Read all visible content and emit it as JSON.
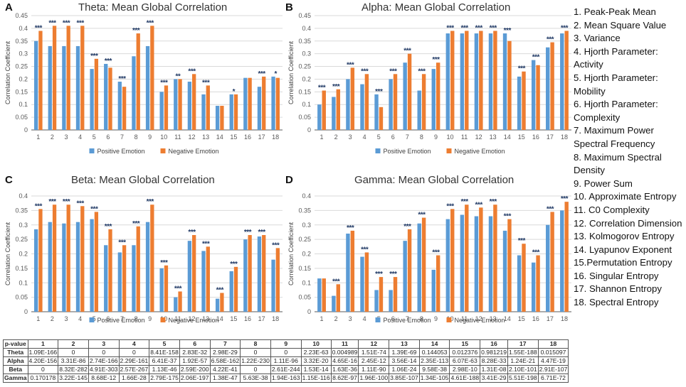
{
  "colors": {
    "positive": "#5B9BD5",
    "negative": "#ED7D31",
    "star": "#1F3864",
    "grid": "#D9D9D9",
    "axis": "#595959"
  },
  "chart_data": [
    {
      "letter": "A",
      "type": "bar",
      "title": "Theta: Mean Global Correlation",
      "ylabel": "Correlation Coefficient",
      "ylim": [
        0,
        0.45
      ],
      "yticks": [
        "0",
        "0.05",
        "0.1",
        "0.15",
        "0.2",
        "0.25",
        "0.3",
        "0.35",
        "0.4",
        "0.45"
      ],
      "categories": [
        "1",
        "2",
        "3",
        "4",
        "5",
        "6",
        "7",
        "8",
        "9",
        "10",
        "11",
        "12",
        "13",
        "14",
        "15",
        "16",
        "17",
        "18"
      ],
      "series": [
        {
          "name": "Positive Emotion",
          "values": [
            0.35,
            0.33,
            0.33,
            0.33,
            0.24,
            0.26,
            0.19,
            0.29,
            0.33,
            0.15,
            0.2,
            0.19,
            0.14,
            0.095,
            0.14,
            0.205,
            0.17,
            0.21
          ]
        },
        {
          "name": "Negative Emotion",
          "values": [
            0.39,
            0.41,
            0.41,
            0.41,
            0.28,
            0.245,
            0.17,
            0.38,
            0.41,
            0.175,
            0.2,
            0.22,
            0.175,
            0.095,
            0.14,
            0.205,
            0.21,
            0.205
          ]
        }
      ],
      "significance": [
        "***",
        "***",
        "***",
        "***",
        "***",
        "***",
        "***",
        "***",
        "***",
        "***",
        "**",
        "***",
        "***",
        "",
        "*",
        "",
        "***",
        "*"
      ]
    },
    {
      "letter": "B",
      "type": "bar",
      "title": "Alpha: Mean Global Correlation",
      "ylabel": "Correlation Coefficient",
      "ylim": [
        0,
        0.45
      ],
      "yticks": [
        "0",
        "0.05",
        "0.1",
        "0.15",
        "0.2",
        "0.25",
        "0.3",
        "0.35",
        "0.4",
        "0.45"
      ],
      "categories": [
        "1",
        "2",
        "3",
        "4",
        "5",
        "6",
        "7",
        "8",
        "9",
        "10",
        "11",
        "12",
        "13",
        "14",
        "15",
        "16",
        "17",
        "18"
      ],
      "series": [
        {
          "name": "Positive Emotion",
          "values": [
            0.1,
            0.13,
            0.2,
            0.18,
            0.14,
            0.2,
            0.265,
            0.155,
            0.24,
            0.38,
            0.38,
            0.38,
            0.38,
            0.38,
            0.21,
            0.275,
            0.325,
            0.38
          ]
        },
        {
          "name": "Negative Emotion",
          "values": [
            0.155,
            0.16,
            0.245,
            0.22,
            0.09,
            0.22,
            0.3,
            0.22,
            0.265,
            0.39,
            0.39,
            0.39,
            0.39,
            0.35,
            0.23,
            0.255,
            0.345,
            0.39
          ]
        }
      ],
      "significance": [
        "***",
        "***",
        "***",
        "***",
        "***",
        "***",
        "***",
        "***",
        "***",
        "***",
        "***",
        "***",
        "***",
        "***",
        "***",
        "***",
        "***",
        "***"
      ]
    },
    {
      "letter": "C",
      "type": "bar",
      "title": "Beta: Mean Global Correlation",
      "ylabel": "Correlation Coefficient",
      "ylim": [
        0,
        0.4
      ],
      "yticks": [
        "0",
        "0.05",
        "0.1",
        "0.15",
        "0.2",
        "0.25",
        "0.3",
        "0.35",
        "0.4"
      ],
      "categories": [
        "1",
        "2",
        "3",
        "4",
        "5",
        "6",
        "7",
        "8",
        "9",
        "10",
        "11",
        "12",
        "13",
        "14",
        "15",
        "16",
        "17",
        "18"
      ],
      "series": [
        {
          "name": "Positive Emotion",
          "values": [
            0.285,
            0.31,
            0.305,
            0.31,
            0.32,
            0.23,
            0.205,
            0.23,
            0.31,
            0.15,
            0.05,
            0.245,
            0.21,
            0.045,
            0.14,
            0.25,
            0.26,
            0.18
          ]
        },
        {
          "name": "Negative Emotion",
          "values": [
            0.355,
            0.37,
            0.37,
            0.365,
            0.345,
            0.285,
            0.23,
            0.295,
            0.37,
            0.16,
            0.07,
            0.265,
            0.225,
            0.065,
            0.155,
            0.265,
            0.265,
            0.22
          ]
        }
      ],
      "significance": [
        "***",
        "***",
        "***",
        "***",
        "***",
        "***",
        "***",
        "***",
        "***",
        "***",
        "***",
        "***",
        "***",
        "***",
        "***",
        "***",
        "***",
        "***"
      ]
    },
    {
      "letter": "D",
      "type": "bar",
      "title": "Gamma: Mean Global Correlation",
      "ylabel": "Correlation Coefficient",
      "ylim": [
        0,
        0.4
      ],
      "yticks": [
        "0",
        "0.05",
        "0.1",
        "0.15",
        "0.2",
        "0.25",
        "0.3",
        "0.35",
        "0.4"
      ],
      "categories": [
        "1",
        "2",
        "3",
        "4",
        "5",
        "6",
        "7",
        "8",
        "9",
        "10",
        "11",
        "12",
        "13",
        "14",
        "15",
        "16",
        "17",
        "18"
      ],
      "series": [
        {
          "name": "Positive Emotion",
          "values": [
            0.115,
            0.055,
            0.27,
            0.19,
            0.075,
            0.075,
            0.245,
            0.305,
            0.145,
            0.32,
            0.335,
            0.33,
            0.33,
            0.28,
            0.195,
            0.17,
            0.3,
            0.35
          ]
        },
        {
          "name": "Negative Emotion",
          "values": [
            0.115,
            0.095,
            0.28,
            0.205,
            0.12,
            0.12,
            0.285,
            0.325,
            0.195,
            0.355,
            0.37,
            0.36,
            0.37,
            0.32,
            0.235,
            0.195,
            0.345,
            0.38
          ]
        }
      ],
      "significance": [
        "",
        "***",
        "***",
        "***",
        "***",
        "***",
        "***",
        "***",
        "***",
        "***",
        "***",
        "***",
        "***",
        "***",
        "***",
        "***",
        "***",
        "***"
      ]
    }
  ],
  "legend": {
    "items": [
      "1. Peak-Peak Mean",
      "2. Mean Square Value",
      "3. Variance",
      "4. Hjorth Parameter: Activity",
      "5. Hjorth Parameter: Mobility",
      "6. Hjorth Parameter: Complexity",
      "7. Maximum Power Spectral Frequency",
      "8. Maximum Spectral Density",
      "9. Power Sum",
      "10. Approximate Entropy",
      "11. C0 Complexity",
      "12. Correlation Dimension",
      "13. Kolmogorov Entropy",
      "14. Lyapunov Exponent",
      "15.Permutation Entropy",
      "16. Singular Entropy",
      "17. Shannon Entropy",
      "18. Spectral Entropy"
    ]
  },
  "pvalue_table": {
    "corner": "p-value",
    "columns": [
      "1",
      "2",
      "3",
      "4",
      "5",
      "6",
      "7",
      "8",
      "9",
      "10",
      "11",
      "12",
      "13",
      "14",
      "15",
      "16",
      "17",
      "18"
    ],
    "rows": [
      {
        "name": "Theta",
        "values": [
          "1.09E-166",
          "0",
          "0",
          "0",
          "8.41E-158",
          "2.83E-32",
          "2.98E-29",
          "0",
          "0",
          "2.23E-63",
          "0.004989",
          "1.51E-74",
          "1.39E-69",
          "0.144053",
          "0.012376",
          "0.981219",
          "1.55E-188",
          "0.015097"
        ]
      },
      {
        "name": "Alpha",
        "values": [
          "4.20E-156",
          "3.31E-86",
          "2.74E-166",
          "2.29E-161",
          "6.41E-37",
          "1.92E-57",
          "6.58E-162",
          "1.22E-230",
          "1.11E-96",
          "3.32E-20",
          "4.65E-16",
          "2.45E-12",
          "3.56E-14",
          "2.35E-113",
          "6.07E-63",
          "8.28E-33",
          "1.24E-21",
          "4.47E-19"
        ]
      },
      {
        "name": "Beta",
        "values": [
          "0",
          "8.32E-282",
          "4.91E-303",
          "2.57E-267",
          "1.13E-46",
          "2.59E-200",
          "4.22E-41",
          "0",
          "2.61E-244",
          "1.53E-14",
          "1.63E-36",
          "1.11E-90",
          "1.06E-24",
          "9.58E-38",
          "2.98E-10",
          "1.31E-08",
          "2.10E-101",
          "2.91E-107"
        ]
      },
      {
        "name": "Gamma",
        "values": [
          "0.170178",
          "3.22E-145",
          "8.68E-12",
          "1.66E-28",
          "2.79E-175",
          "2.06E-197",
          "1.38E-47",
          "5.63E-38",
          "1.94E-163",
          "1.15E-116",
          "8.62E-97",
          "1.96E-100",
          "3.85E-107",
          "1.34E-105",
          "4.61E-188",
          "3.41E-29",
          "5.51E-198",
          "6.71E-72"
        ]
      }
    ]
  }
}
